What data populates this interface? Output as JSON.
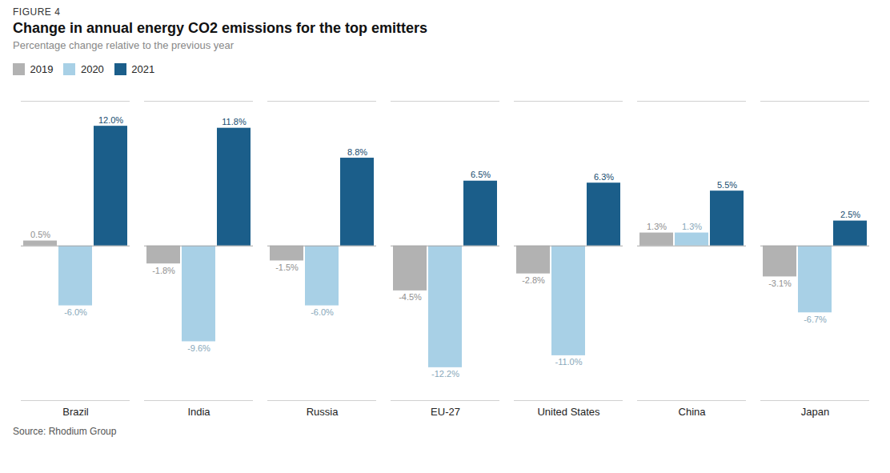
{
  "chart_data": {
    "type": "bar",
    "title": "Change in annual energy CO2 emissions for the top emitters",
    "subtitle": "Percentage change relative to the previous year",
    "annotations": [
      "FIGURE 4"
    ],
    "caption": "Source: Rhodium Group",
    "categories": [
      "Brazil",
      "India",
      "Russia",
      "EU-27",
      "United States",
      "China",
      "Japan"
    ],
    "series": [
      {
        "name": "2019",
        "color": "#b2b2b2",
        "values": [
          0.5,
          -1.8,
          -1.5,
          -4.5,
          -2.8,
          1.3,
          -3.1
        ],
        "value_labels": [
          "0.5%",
          "-1.8%",
          "-1.5%",
          "-4.5%",
          "-2.8%",
          "1.3%",
          "-3.1%"
        ]
      },
      {
        "name": "2020",
        "color": "#a8d0e6",
        "values": [
          -6.0,
          -9.6,
          -6.0,
          -12.2,
          -11.0,
          1.3,
          -6.7
        ],
        "value_labels": [
          "-6.0%",
          "-9.6%",
          "-6.0%",
          "-12.2%",
          "-11.0%",
          "1.3%",
          "-6.7%"
        ]
      },
      {
        "name": "2021",
        "color": "#1b5e8a",
        "values": [
          12.0,
          11.8,
          8.8,
          6.5,
          6.3,
          5.5,
          2.5
        ],
        "value_labels": [
          "12.0%",
          "11.8%",
          "8.8%",
          "6.5%",
          "6.3%",
          "5.5%",
          "2.5%"
        ]
      }
    ],
    "ylim": [
      -15.5,
      14.5
    ],
    "grid": false,
    "legend": "upper left",
    "data_labels": true,
    "tick_labels": "x"
  }
}
